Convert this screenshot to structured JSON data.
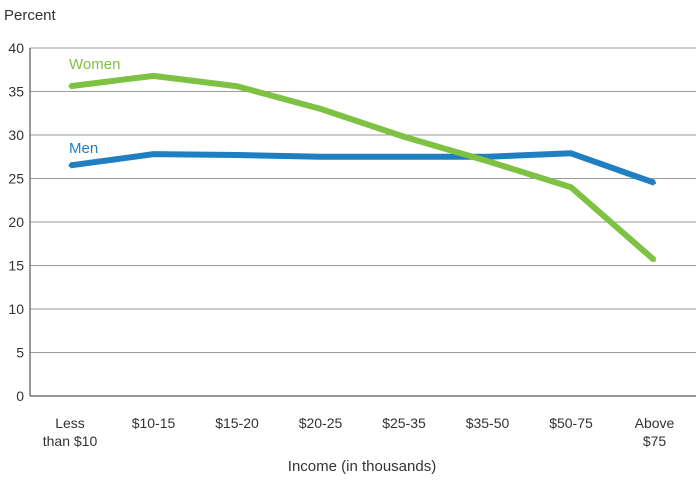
{
  "chart_data": {
    "type": "line",
    "title": "",
    "ylabel": "Percent",
    "xlabel": "Income (in thousands)",
    "ylim": [
      0,
      40
    ],
    "yticks": [
      0,
      5,
      10,
      15,
      20,
      25,
      30,
      35,
      40
    ],
    "grid": true,
    "legend": "inline labels",
    "categories": [
      [
        "Less",
        "than $10"
      ],
      [
        "$10-15"
      ],
      [
        "$15-20"
      ],
      [
        "$20-25"
      ],
      [
        "$25-35"
      ],
      [
        "$35-50"
      ],
      [
        "$50-75"
      ],
      [
        "Above",
        "$75"
      ]
    ],
    "series": [
      {
        "name": "Women",
        "color": "#7dc243",
        "values": [
          35.6,
          36.8,
          35.6,
          33.0,
          29.8,
          27.0,
          24.0,
          15.6
        ]
      },
      {
        "name": "Men",
        "color": "#1f7fc1",
        "values": [
          26.5,
          27.8,
          27.7,
          27.5,
          27.5,
          27.5,
          27.9,
          24.5
        ]
      }
    ]
  }
}
